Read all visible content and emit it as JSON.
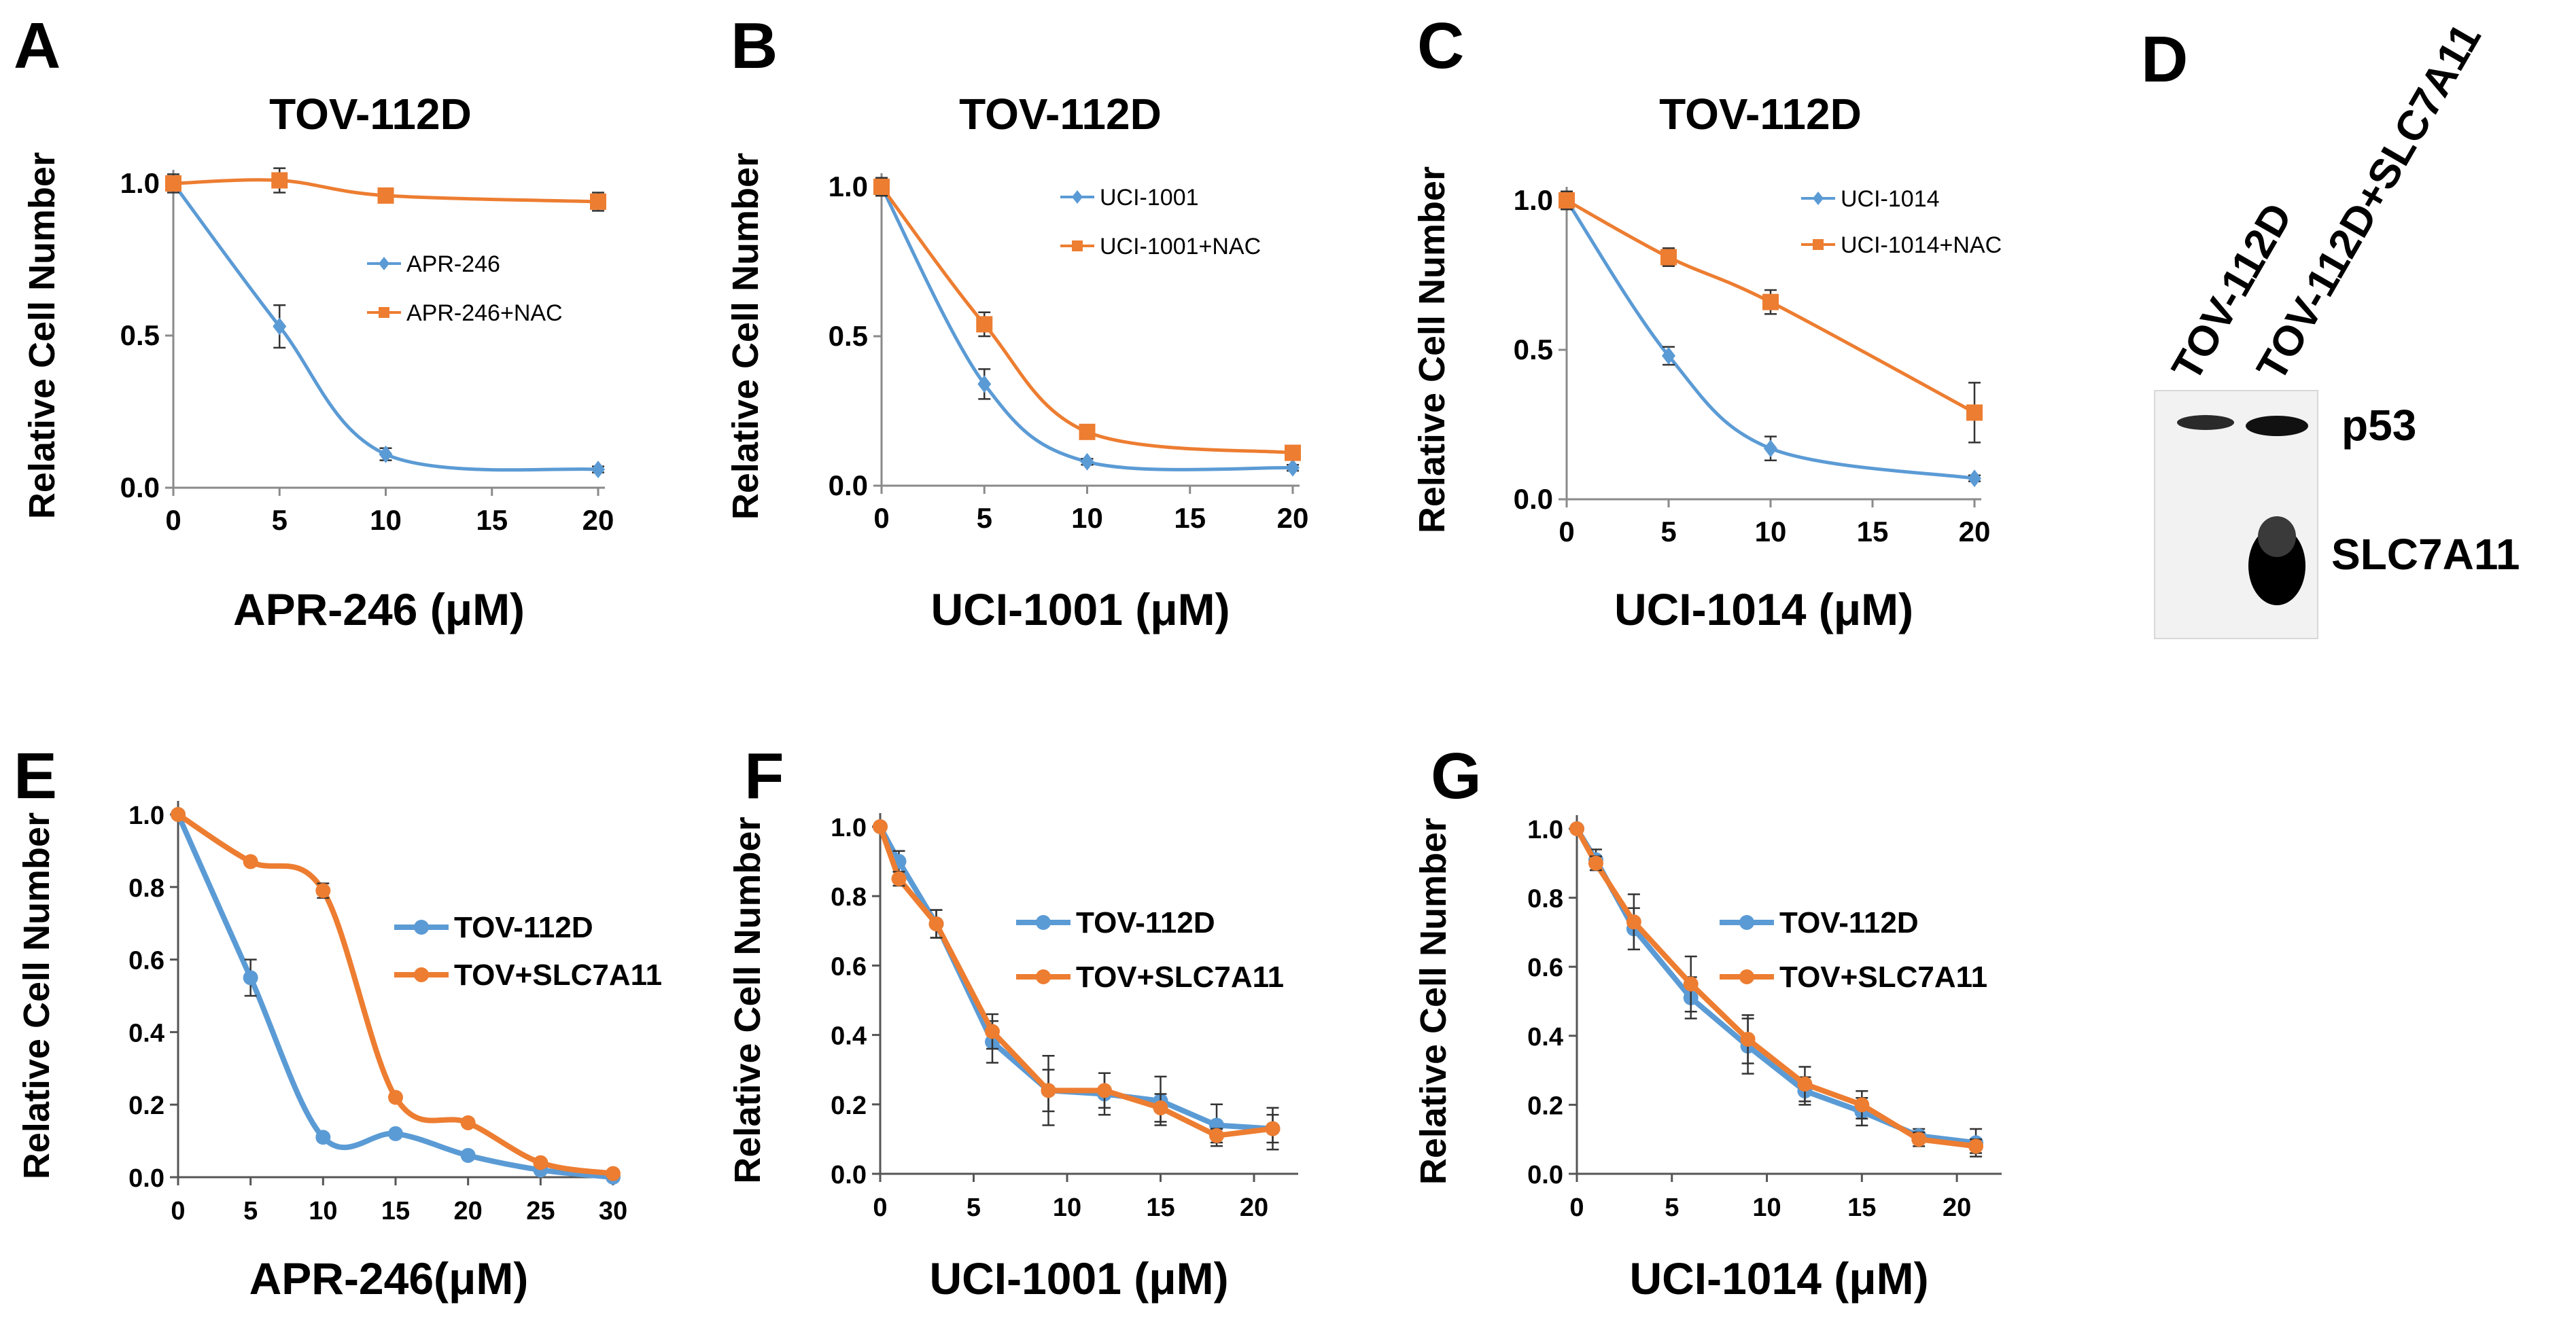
{
  "panels": [
    {
      "letter": "A"
    },
    {
      "letter": "B"
    },
    {
      "letter": "C"
    },
    {
      "letter": "D"
    },
    {
      "letter": "E"
    },
    {
      "letter": "F"
    },
    {
      "letter": "G"
    }
  ],
  "colors": {
    "blue": "#5B9BD5",
    "orange": "#ED7D31",
    "axis": "#000000"
  },
  "chart_data": [
    {
      "id": "A",
      "type": "line",
      "title": "TOV-112D",
      "xlabel": "APR-246 (μM)",
      "ylabel": "Relative Cell Number",
      "xlim": [
        0,
        20
      ],
      "ylim": [
        0,
        1.0
      ],
      "xticks": [
        0,
        5,
        10,
        15,
        20
      ],
      "xtick_labels": [
        "0",
        "5",
        "10",
        "15",
        "20"
      ],
      "yticks": [
        0,
        0.5,
        1.0
      ],
      "ytick_labels": [
        "0.0",
        "0.5",
        "1.0"
      ],
      "series": [
        {
          "name": "APR-246",
          "color": "blue",
          "marker": "diamond",
          "x": [
            0,
            5,
            10,
            20
          ],
          "values": [
            1.0,
            0.53,
            0.11,
            0.06
          ],
          "err": [
            0,
            0.07,
            0.02,
            0.01
          ]
        },
        {
          "name": "APR-246+NAC",
          "color": "orange",
          "marker": "square",
          "x": [
            0,
            5,
            10,
            20
          ],
          "values": [
            1.0,
            1.01,
            0.96,
            0.94
          ],
          "err": [
            0.03,
            0.04,
            0.02,
            0.03
          ]
        }
      ]
    },
    {
      "id": "B",
      "type": "line",
      "title": "TOV-112D",
      "xlabel": "UCI-1001 (μM)",
      "ylabel": "Relative Cell Number",
      "xlim": [
        0,
        20
      ],
      "ylim": [
        0,
        1.0
      ],
      "xticks": [
        0,
        5,
        10,
        15,
        20
      ],
      "xtick_labels": [
        "0",
        "5",
        "10",
        "15",
        "20"
      ],
      "yticks": [
        0,
        0.5,
        1.0
      ],
      "ytick_labels": [
        "0.0",
        "0.5",
        "1.0"
      ],
      "series": [
        {
          "name": "UCI-1001",
          "color": "blue",
          "marker": "diamond",
          "x": [
            0,
            5,
            10,
            20
          ],
          "values": [
            1.0,
            0.34,
            0.08,
            0.06
          ],
          "err": [
            0.02,
            0.05,
            0.01,
            0.01
          ]
        },
        {
          "name": "UCI-1001+NAC",
          "color": "orange",
          "marker": "square",
          "x": [
            0,
            5,
            10,
            20
          ],
          "values": [
            1.0,
            0.54,
            0.18,
            0.11
          ],
          "err": [
            0.03,
            0.04,
            0.01,
            0.01
          ]
        }
      ]
    },
    {
      "id": "C",
      "type": "line",
      "title": "TOV-112D",
      "xlabel": "UCI-1014 (μM)",
      "ylabel": "Relative Cell Number",
      "xlim": [
        0,
        20
      ],
      "ylim": [
        0,
        1.0
      ],
      "xticks": [
        0,
        5,
        10,
        15,
        20
      ],
      "xtick_labels": [
        "0",
        "5",
        "10",
        "15",
        "20"
      ],
      "yticks": [
        0,
        0.5,
        1.0
      ],
      "ytick_labels": [
        "0.0",
        "0.5",
        "1.0"
      ],
      "series": [
        {
          "name": "UCI-1014",
          "color": "blue",
          "marker": "diamond",
          "x": [
            0,
            5,
            10,
            20
          ],
          "values": [
            1.0,
            0.48,
            0.17,
            0.07
          ],
          "err": [
            0.02,
            0.03,
            0.04,
            0.01
          ]
        },
        {
          "name": "UCI-1014+NAC",
          "color": "orange",
          "marker": "square",
          "x": [
            0,
            5,
            10,
            20
          ],
          "values": [
            1.0,
            0.81,
            0.66,
            0.29
          ],
          "err": [
            0.03,
            0.03,
            0.04,
            0.1
          ]
        }
      ]
    },
    {
      "id": "E",
      "type": "line",
      "title": "",
      "xlabel": "APR-246(μM)",
      "ylabel": "Relative Cell Number",
      "xlim": [
        0,
        30
      ],
      "ylim": [
        0,
        1.0
      ],
      "xticks": [
        0,
        5,
        10,
        15,
        20,
        25,
        30
      ],
      "xtick_labels": [
        "0",
        "5",
        "10",
        "15",
        "20",
        "25",
        "30"
      ],
      "yticks": [
        0,
        0.2,
        0.4,
        0.6,
        0.8,
        1.0
      ],
      "ytick_labels": [
        "0.0",
        "0.2",
        "0.4",
        "0.6",
        "0.8",
        "1.0"
      ],
      "series": [
        {
          "name": "TOV-112D",
          "color": "blue",
          "marker": "circle",
          "x": [
            0,
            5,
            10,
            15,
            20,
            25,
            30
          ],
          "values": [
            1.0,
            0.55,
            0.11,
            0.12,
            0.06,
            0.02,
            0.0
          ],
          "err": [
            0,
            0.05,
            0.01,
            0.01,
            0.01,
            0,
            0
          ]
        },
        {
          "name": "TOV+SLC7A11",
          "color": "orange",
          "marker": "circle",
          "x": [
            0,
            5,
            10,
            15,
            20,
            25,
            30
          ],
          "values": [
            1.0,
            0.87,
            0.79,
            0.22,
            0.15,
            0.04,
            0.01
          ],
          "err": [
            0,
            0,
            0.02,
            0.01,
            0.01,
            0.01,
            0
          ]
        }
      ]
    },
    {
      "id": "F",
      "type": "line",
      "title": "",
      "xlabel": "UCI-1001 (μM)",
      "ylabel": "Relative Cell Number",
      "xlim": [
        0,
        22
      ],
      "ylim": [
        0,
        1.0
      ],
      "xticks": [
        0,
        5,
        10,
        15,
        20
      ],
      "xtick_labels": [
        "0",
        "5",
        "10",
        "15",
        "20"
      ],
      "yticks": [
        0,
        0.2,
        0.4,
        0.6,
        0.8,
        1.0
      ],
      "ytick_labels": [
        "0.0",
        "0.2",
        "0.4",
        "0.6",
        "0.8",
        "1.0"
      ],
      "series": [
        {
          "name": "TOV-112D",
          "color": "blue",
          "marker": "circle",
          "x": [
            0,
            1,
            3,
            6,
            9,
            12,
            15,
            18,
            21
          ],
          "values": [
            1.0,
            0.9,
            0.72,
            0.38,
            0.24,
            0.23,
            0.21,
            0.14,
            0.13
          ],
          "err": [
            0,
            0.03,
            0.04,
            0.06,
            0.1,
            0.06,
            0.07,
            0.06,
            0.06
          ]
        },
        {
          "name": "TOV+SLC7A11",
          "color": "orange",
          "marker": "circle",
          "x": [
            0,
            1,
            3,
            6,
            9,
            12,
            15,
            18,
            21
          ],
          "values": [
            1.0,
            0.85,
            0.72,
            0.41,
            0.24,
            0.24,
            0.19,
            0.11,
            0.13
          ],
          "err": [
            0,
            0.02,
            0.04,
            0.05,
            0.06,
            0.05,
            0.04,
            0.02,
            0.04
          ]
        }
      ]
    },
    {
      "id": "G",
      "type": "line",
      "title": "",
      "xlabel": "UCI-1014 (μM)",
      "ylabel": "Relative Cell Number",
      "xlim": [
        0,
        22
      ],
      "ylim": [
        0,
        1.0
      ],
      "xticks": [
        0,
        5,
        10,
        15,
        20
      ],
      "xtick_labels": [
        "0",
        "5",
        "10",
        "15",
        "20"
      ],
      "yticks": [
        0,
        0.2,
        0.4,
        0.6,
        0.8,
        1.0
      ],
      "ytick_labels": [
        "0.0",
        "0.2",
        "0.4",
        "0.6",
        "0.8",
        "1.0"
      ],
      "series": [
        {
          "name": "TOV-112D",
          "color": "blue",
          "marker": "circle",
          "x": [
            0,
            1,
            3,
            6,
            9,
            12,
            15,
            18,
            21
          ],
          "values": [
            1.0,
            0.91,
            0.71,
            0.51,
            0.37,
            0.24,
            0.18,
            0.11,
            0.09
          ],
          "err": [
            0,
            0.03,
            0.06,
            0.06,
            0.08,
            0.04,
            0.04,
            0.02,
            0.04
          ]
        },
        {
          "name": "TOV+SLC7A11",
          "color": "orange",
          "marker": "circle",
          "x": [
            0,
            1,
            3,
            6,
            9,
            12,
            15,
            18,
            21
          ],
          "values": [
            1.0,
            0.9,
            0.73,
            0.55,
            0.39,
            0.26,
            0.2,
            0.1,
            0.08
          ],
          "err": [
            0,
            0.02,
            0.08,
            0.08,
            0.07,
            0.05,
            0.04,
            0.02,
            0.02
          ]
        }
      ]
    }
  ],
  "western_blot": {
    "lanes": [
      "TOV-112D",
      "TOV-112D+SLC7A11"
    ],
    "bands": [
      "p53",
      "SLC7A11"
    ]
  }
}
